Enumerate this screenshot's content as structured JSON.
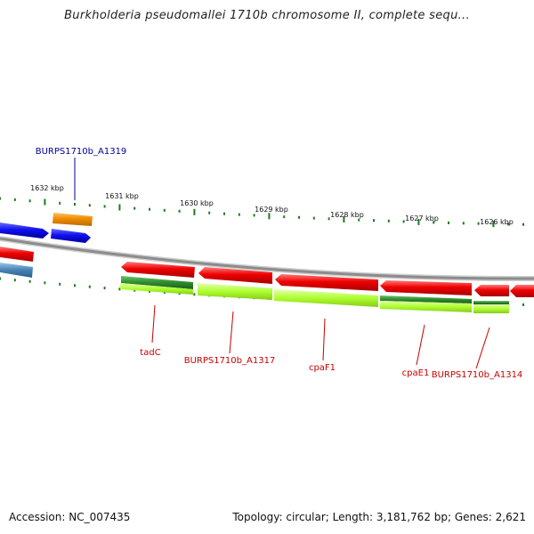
{
  "title": "Burkholderia pseudomallei 1710b chromosome II, complete sequ...",
  "accession": "Accession: NC_007435",
  "summary": "Topology: circular; Length: 3,181,762 bp; Genes: 2,621",
  "colors": {
    "backbone": "#8c8c8c",
    "tick": "#1e7a1e",
    "gene_forward": "#1010ee",
    "gene_reverse": "#ee0000",
    "gene_orange": "#f08c00",
    "gene_steel": "#4682b4",
    "cds_darkgreen": "#2e8b2e",
    "cds_lightgreen": "#adff2f",
    "label_blue": "#00009a",
    "label_red": "#c80000"
  },
  "position_labels": [
    "1632 kbp",
    "1631 kbp",
    "1630 kbp",
    "1629 kbp",
    "1628 kbp",
    "1627 kbp",
    "1626 kbp"
  ],
  "gene_labels": {
    "top": "BURPS1710b_A1319",
    "tadC": "tadC",
    "a1317": "BURPS1710b_A1317",
    "cpaF1": "cpaF1",
    "cpaE1": "cpaE1",
    "a1314": "BURPS1710b_A1314"
  }
}
